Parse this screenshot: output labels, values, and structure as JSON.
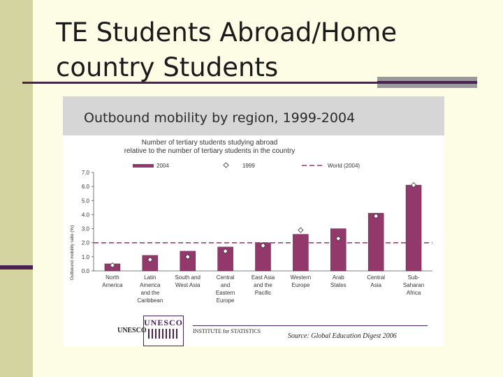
{
  "slide": {
    "title": "TE Students Abroad/Home country Students"
  },
  "figure": {
    "header": "Outbound mobility by region, 1999-2004",
    "logo_text": "UNESCO",
    "logo_seal": "UNESCO",
    "institute": "INSTITUTE for STATISTICS",
    "source": "Source: Global Education Digest 2006"
  },
  "colors": {
    "bar": "#93386b",
    "marker": "#ffffff",
    "world_line": "#93386b"
  },
  "chart_data": {
    "type": "bar",
    "title": "Number of tertiary students studying abroad",
    "subtitle": "relative to the number of tertiary students in the country",
    "ylabel": "Outbound mobility ratio (%)",
    "xlabel": "",
    "ylim": [
      0,
      7
    ],
    "yticks": [
      "0.0",
      "1.0",
      "2.0",
      "3.0",
      "4.0",
      "5.0",
      "6.0",
      "7.0"
    ],
    "grid": false,
    "legend_position": "top",
    "categories": [
      [
        "North",
        "America"
      ],
      [
        "Latin",
        "America",
        "and the",
        "Caribbean"
      ],
      [
        "South and",
        "West Asia"
      ],
      [
        "Central",
        "and",
        "Eastern",
        "Europe"
      ],
      [
        "East Asia",
        "and the",
        "Pacific"
      ],
      [
        "Western",
        "Europe"
      ],
      [
        "Arab",
        "States"
      ],
      [
        "Central",
        "Asia"
      ],
      [
        "Sub-",
        "Saharan",
        "Africa"
      ]
    ],
    "series": [
      {
        "name": "2004",
        "kind": "bar",
        "values": [
          0.5,
          1.1,
          1.4,
          1.7,
          2.0,
          2.6,
          3.0,
          4.1,
          6.1
        ]
      },
      {
        "name": "1999",
        "kind": "marker",
        "values": [
          0.4,
          0.8,
          1.0,
          1.4,
          1.8,
          2.9,
          2.3,
          3.9,
          6.1
        ]
      },
      {
        "name": "World (2004)",
        "kind": "hline",
        "value": 2.0
      }
    ]
  }
}
